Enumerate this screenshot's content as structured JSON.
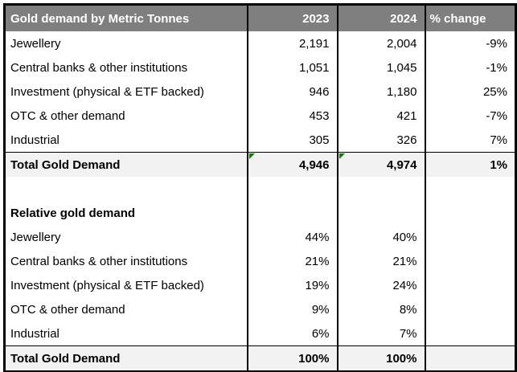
{
  "table": {
    "header": {
      "title": "Gold demand by Metric Tonnes",
      "col_2023": "2023",
      "col_2024": "2024",
      "col_change": "% change"
    },
    "tonnage_rows": [
      {
        "label": "Jewellery",
        "y2023": "2,191",
        "y2024": "2,004",
        "change": "-9%"
      },
      {
        "label": "Central banks & other institutions",
        "y2023": "1,051",
        "y2024": "1,045",
        "change": "-1%"
      },
      {
        "label": "Investment (physical & ETF backed)",
        "y2023": "946",
        "y2024": "1,180",
        "change": "25%"
      },
      {
        "label": "OTC & other demand",
        "y2023": "453",
        "y2024": "421",
        "change": "-7%"
      },
      {
        "label": "Industrial",
        "y2023": "305",
        "y2024": "326",
        "change": "7%"
      }
    ],
    "tonnage_total": {
      "label": "Total Gold Demand",
      "y2023": "4,946",
      "y2024": "4,974",
      "change": "1%"
    },
    "section2_title": "Relative gold demand",
    "relative_rows": [
      {
        "label": "Jewellery",
        "y2023": "44%",
        "y2024": "40%"
      },
      {
        "label": "Central banks & other institutions",
        "y2023": "21%",
        "y2024": "21%"
      },
      {
        "label": "Investment (physical & ETF backed)",
        "y2023": "19%",
        "y2024": "24%"
      },
      {
        "label": "OTC & other demand",
        "y2023": "9%",
        "y2024": "8%"
      },
      {
        "label": "Industrial",
        "y2023": "6%",
        "y2024": "7%"
      }
    ],
    "relative_total": {
      "label": "Total Gold Demand",
      "y2023": "100%",
      "y2024": "100%"
    }
  },
  "icons": {
    "error_flag": "green-triangle-top-left-corner"
  },
  "colors": {
    "header_bg": "#7f7f7f",
    "header_text": "#ffffff",
    "total_row_bg": "#f2f2f2",
    "grid_border": "#000000",
    "flag_green": "#0a7d0a"
  }
}
